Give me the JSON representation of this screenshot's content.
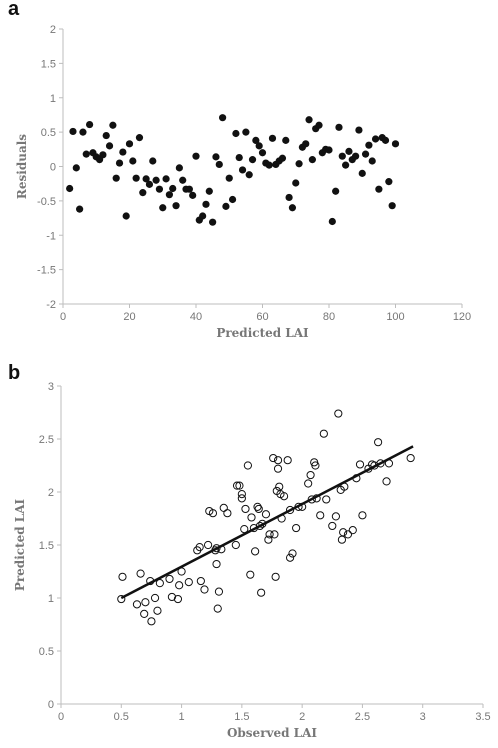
{
  "chart_data": [
    {
      "panel": "a",
      "type": "scatter",
      "xlabel": "Predicted LAI",
      "ylabel": "Residuals",
      "xlim": [
        0,
        120
      ],
      "ylim": [
        -2,
        2
      ],
      "xticks": [
        0,
        20,
        40,
        60,
        80,
        100,
        120
      ],
      "yticks": [
        -2,
        -1.5,
        -1,
        -0.5,
        0,
        0.5,
        1,
        1.5,
        2
      ],
      "grid": false,
      "marker": "filled-circle",
      "points": [
        [
          2,
          -0.32
        ],
        [
          3,
          0.51
        ],
        [
          4,
          -0.02
        ],
        [
          5,
          -0.62
        ],
        [
          6,
          0.5
        ],
        [
          7,
          0.18
        ],
        [
          8,
          0.61
        ],
        [
          9,
          0.2
        ],
        [
          10,
          0.14
        ],
        [
          11,
          0.1
        ],
        [
          12,
          0.17
        ],
        [
          13,
          0.45
        ],
        [
          14,
          0.3
        ],
        [
          15,
          0.6
        ],
        [
          16,
          -0.17
        ],
        [
          17,
          0.05
        ],
        [
          18,
          0.21
        ],
        [
          19,
          -0.72
        ],
        [
          20,
          0.33
        ],
        [
          21,
          0.08
        ],
        [
          22,
          -0.17
        ],
        [
          23,
          0.42
        ],
        [
          24,
          -0.38
        ],
        [
          25,
          -0.18
        ],
        [
          26,
          -0.26
        ],
        [
          27,
          0.08
        ],
        [
          28,
          -0.2
        ],
        [
          29,
          -0.33
        ],
        [
          30,
          -0.6
        ],
        [
          31,
          -0.18
        ],
        [
          32,
          -0.41
        ],
        [
          33,
          -0.32
        ],
        [
          34,
          -0.57
        ],
        [
          35,
          -0.02
        ],
        [
          36,
          -0.2
        ],
        [
          37,
          -0.33
        ],
        [
          38,
          -0.33
        ],
        [
          39,
          -0.42
        ],
        [
          40,
          0.15
        ],
        [
          41,
          -0.78
        ],
        [
          42,
          -0.72
        ],
        [
          43,
          -0.55
        ],
        [
          44,
          -0.36
        ],
        [
          45,
          -0.81
        ],
        [
          46,
          0.14
        ],
        [
          47,
          0.03
        ],
        [
          48,
          0.71
        ],
        [
          49,
          -0.58
        ],
        [
          50,
          -0.17
        ],
        [
          51,
          -0.48
        ],
        [
          52,
          0.48
        ],
        [
          53,
          0.13
        ],
        [
          54,
          -0.05
        ],
        [
          55,
          0.5
        ],
        [
          56,
          -0.12
        ],
        [
          57,
          0.1
        ],
        [
          58,
          0.38
        ],
        [
          59,
          0.3
        ],
        [
          60,
          0.2
        ],
        [
          61,
          0.05
        ],
        [
          62,
          0.02
        ],
        [
          63,
          0.41
        ],
        [
          64,
          0.03
        ],
        [
          65,
          0.08
        ],
        [
          66,
          0.12
        ],
        [
          67,
          0.38
        ],
        [
          68,
          -0.45
        ],
        [
          69,
          -0.6
        ],
        [
          70,
          -0.24
        ],
        [
          71,
          0.04
        ],
        [
          72,
          0.28
        ],
        [
          73,
          0.33
        ],
        [
          74,
          0.68
        ],
        [
          75,
          0.1
        ],
        [
          76,
          0.55
        ],
        [
          77,
          0.6
        ],
        [
          78,
          0.2
        ],
        [
          79,
          0.25
        ],
        [
          80,
          0.24
        ],
        [
          81,
          -0.8
        ],
        [
          82,
          -0.36
        ],
        [
          83,
          0.57
        ],
        [
          84,
          0.15
        ],
        [
          85,
          0.02
        ],
        [
          86,
          0.22
        ],
        [
          87,
          0.1
        ],
        [
          88,
          0.15
        ],
        [
          89,
          0.53
        ],
        [
          90,
          -0.1
        ],
        [
          91,
          0.18
        ],
        [
          92,
          0.31
        ],
        [
          93,
          0.08
        ],
        [
          94,
          0.4
        ],
        [
          95,
          -0.33
        ],
        [
          96,
          0.42
        ],
        [
          97,
          0.38
        ],
        [
          98,
          -0.22
        ],
        [
          99,
          -0.57
        ],
        [
          100,
          0.33
        ]
      ]
    },
    {
      "panel": "b",
      "type": "scatter",
      "xlabel": "Observed LAI",
      "ylabel": "Predicted LAI",
      "xlim": [
        0,
        3.5
      ],
      "ylim": [
        0,
        3
      ],
      "xticks": [
        0,
        0.5,
        1,
        1.5,
        2,
        2.5,
        3,
        3.5
      ],
      "yticks": [
        0,
        0.5,
        1,
        1.5,
        2,
        2.5,
        3
      ],
      "grid": false,
      "marker": "open-circle",
      "trendline": {
        "x": [
          0.5,
          2.92
        ],
        "y": [
          1.0,
          2.43
        ]
      },
      "points": [
        [
          0.5,
          0.99
        ],
        [
          0.51,
          1.2
        ],
        [
          0.63,
          0.94
        ],
        [
          0.66,
          1.23
        ],
        [
          0.69,
          0.85
        ],
        [
          0.7,
          0.96
        ],
        [
          0.74,
          1.16
        ],
        [
          0.75,
          0.78
        ],
        [
          0.78,
          1.0
        ],
        [
          0.8,
          0.88
        ],
        [
          0.82,
          1.14
        ],
        [
          0.9,
          1.18
        ],
        [
          0.92,
          1.01
        ],
        [
          0.97,
          0.99
        ],
        [
          0.98,
          1.12
        ],
        [
          1.0,
          1.25
        ],
        [
          1.06,
          1.15
        ],
        [
          1.13,
          1.45
        ],
        [
          1.15,
          1.48
        ],
        [
          1.16,
          1.16
        ],
        [
          1.19,
          1.08
        ],
        [
          1.22,
          1.5
        ],
        [
          1.23,
          1.82
        ],
        [
          1.26,
          1.8
        ],
        [
          1.28,
          1.45
        ],
        [
          1.29,
          1.47
        ],
        [
          1.29,
          1.32
        ],
        [
          1.3,
          0.9
        ],
        [
          1.31,
          1.06
        ],
        [
          1.33,
          1.46
        ],
        [
          1.35,
          1.85
        ],
        [
          1.38,
          1.8
        ],
        [
          1.45,
          1.5
        ],
        [
          1.46,
          2.06
        ],
        [
          1.48,
          2.06
        ],
        [
          1.5,
          1.98
        ],
        [
          1.5,
          1.94
        ],
        [
          1.52,
          1.65
        ],
        [
          1.53,
          1.84
        ],
        [
          1.55,
          2.25
        ],
        [
          1.57,
          1.22
        ],
        [
          1.58,
          1.76
        ],
        [
          1.6,
          1.66
        ],
        [
          1.61,
          1.44
        ],
        [
          1.63,
          1.86
        ],
        [
          1.64,
          1.84
        ],
        [
          1.65,
          1.68
        ],
        [
          1.66,
          1.05
        ],
        [
          1.67,
          1.7
        ],
        [
          1.7,
          1.79
        ],
        [
          1.72,
          1.55
        ],
        [
          1.73,
          1.6
        ],
        [
          1.76,
          2.32
        ],
        [
          1.77,
          1.6
        ],
        [
          1.78,
          1.2
        ],
        [
          1.79,
          2.01
        ],
        [
          1.8,
          2.3
        ],
        [
          1.8,
          2.22
        ],
        [
          1.81,
          2.05
        ],
        [
          1.82,
          1.98
        ],
        [
          1.83,
          1.75
        ],
        [
          1.85,
          1.96
        ],
        [
          1.88,
          2.3
        ],
        [
          1.9,
          1.83
        ],
        [
          1.9,
          1.38
        ],
        [
          1.92,
          1.42
        ],
        [
          1.95,
          1.66
        ],
        [
          1.97,
          1.86
        ],
        [
          2.0,
          1.86
        ],
        [
          2.05,
          2.08
        ],
        [
          2.07,
          2.16
        ],
        [
          2.08,
          1.93
        ],
        [
          2.1,
          2.28
        ],
        [
          2.11,
          2.25
        ],
        [
          2.12,
          1.94
        ],
        [
          2.15,
          1.78
        ],
        [
          2.18,
          2.55
        ],
        [
          2.2,
          1.93
        ],
        [
          2.25,
          1.68
        ],
        [
          2.28,
          1.77
        ],
        [
          2.3,
          2.74
        ],
        [
          2.32,
          2.02
        ],
        [
          2.33,
          1.55
        ],
        [
          2.34,
          1.62
        ],
        [
          2.35,
          2.05
        ],
        [
          2.38,
          1.6
        ],
        [
          2.42,
          1.64
        ],
        [
          2.45,
          2.13
        ],
        [
          2.48,
          2.26
        ],
        [
          2.5,
          1.78
        ],
        [
          2.55,
          2.22
        ],
        [
          2.58,
          2.26
        ],
        [
          2.6,
          2.25
        ],
        [
          2.63,
          2.47
        ],
        [
          2.65,
          2.27
        ],
        [
          2.7,
          2.1
        ],
        [
          2.72,
          2.27
        ],
        [
          2.9,
          2.32
        ]
      ]
    }
  ]
}
